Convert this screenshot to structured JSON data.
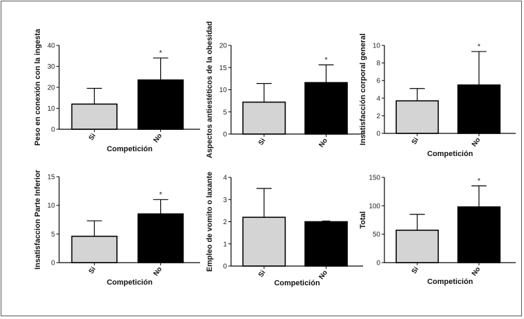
{
  "chart_data": [
    {
      "type": "bar",
      "ylabel": "Peso en conexión con la ingesta",
      "xlabel": "Competición",
      "categories": [
        "Si",
        "No"
      ],
      "values": [
        12,
        23.5
      ],
      "errors": [
        7.5,
        10.5
      ],
      "ylim": [
        0,
        40
      ],
      "yticks": [
        0,
        10,
        20,
        30,
        40
      ],
      "colors": [
        "#d4d4d4",
        "#000000"
      ],
      "annotations": [
        "",
        "*"
      ]
    },
    {
      "type": "bar",
      "ylabel": "Aspectos antiestéticos de la obesidad",
      "xlabel": "",
      "categories": [
        "Si",
        "No"
      ],
      "values": [
        7.2,
        11.6
      ],
      "errors": [
        4.2,
        4.0
      ],
      "ylim": [
        0,
        20
      ],
      "yticks": [
        0,
        5,
        10,
        15,
        20
      ],
      "colors": [
        "#d4d4d4",
        "#000000"
      ],
      "annotations": [
        "",
        "*"
      ]
    },
    {
      "type": "bar",
      "ylabel": "Insatisfacción corporal general",
      "xlabel": "Competición",
      "categories": [
        "Si",
        "No"
      ],
      "values": [
        3.7,
        5.5
      ],
      "errors": [
        1.4,
        3.8
      ],
      "ylim": [
        0,
        10
      ],
      "yticks": [
        0,
        2,
        4,
        6,
        8,
        10
      ],
      "colors": [
        "#d4d4d4",
        "#000000"
      ],
      "annotations": [
        "",
        "*"
      ]
    },
    {
      "type": "bar",
      "ylabel": "Insatisfaccion Parte Inferior",
      "xlabel": "Competición",
      "categories": [
        "Si",
        "No"
      ],
      "values": [
        4.6,
        8.5
      ],
      "errors": [
        2.7,
        2.5
      ],
      "ylim": [
        0,
        15
      ],
      "yticks": [
        0,
        5,
        10,
        15
      ],
      "colors": [
        "#d4d4d4",
        "#000000"
      ],
      "annotations": [
        "",
        "*"
      ]
    },
    {
      "type": "bar",
      "ylabel": "Empleo de vomito o laxante",
      "xlabel": "Competición",
      "categories": [
        "Si",
        "No"
      ],
      "values": [
        2.2,
        2.0
      ],
      "errors": [
        1.3,
        0.05
      ],
      "ylim": [
        0,
        4
      ],
      "yticks": [
        0,
        1,
        2,
        3,
        4
      ],
      "colors": [
        "#d4d4d4",
        "#000000"
      ],
      "annotations": [
        "",
        ""
      ]
    },
    {
      "type": "bar",
      "ylabel": "Total",
      "xlabel": "Competición",
      "categories": [
        "Si",
        "No"
      ],
      "values": [
        57,
        98
      ],
      "errors": [
        28,
        37
      ],
      "ylim": [
        0,
        150
      ],
      "yticks": [
        0,
        50,
        100,
        150
      ],
      "colors": [
        "#d4d4d4",
        "#000000"
      ],
      "annotations": [
        "",
        "*"
      ]
    }
  ]
}
